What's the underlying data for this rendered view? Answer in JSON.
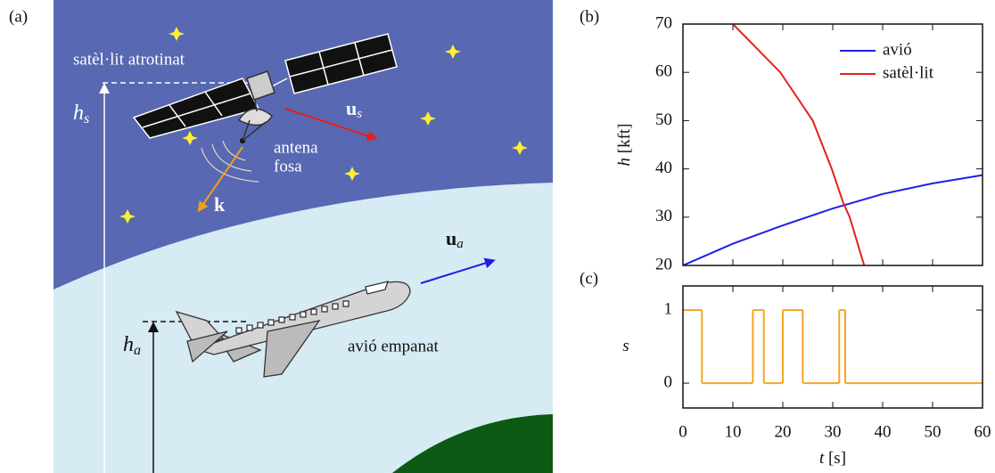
{
  "illustration": {
    "panel_label": "(a)",
    "satellite_label": "satèl·lit atrotinat",
    "satellite_height": {
      "symbol": "h",
      "subscript": "s"
    },
    "satellite_velocity": {
      "symbol": "u",
      "subscript": "s"
    },
    "antenna_label": [
      "antena",
      "fosa"
    ],
    "wave_vector": "k",
    "plane_velocity": {
      "symbol": "u",
      "subscript": "a"
    },
    "plane_height": {
      "symbol": "h",
      "subscript": "a"
    },
    "plane_label": "avió empanat"
  },
  "chart_data": [
    {
      "type": "line",
      "panel_label": "(b)",
      "ylabel": {
        "symbol": "h",
        "unit": "[kft]"
      },
      "xlim": [
        0,
        60
      ],
      "xticks": [
        0,
        10,
        20,
        30,
        40,
        50,
        60
      ],
      "show_xtick_labels": false,
      "ylim": [
        20,
        70
      ],
      "yticks": [
        20,
        30,
        40,
        50,
        60,
        70
      ],
      "legend": "upper right",
      "series": [
        {
          "name": "avió",
          "color": "#1f1fe6",
          "x": [
            0,
            10,
            20,
            30,
            40,
            50,
            60
          ],
          "values": [
            20,
            24.5,
            28.3,
            31.8,
            34.8,
            37,
            38.7
          ]
        },
        {
          "name": "satèl·lit",
          "color": "#e61f1f",
          "x": [
            10,
            19.5,
            26,
            29.8,
            32.1,
            33.4,
            36.3
          ],
          "values": [
            70,
            60,
            50,
            40,
            33,
            30,
            20
          ]
        }
      ]
    },
    {
      "type": "step",
      "panel_label": "(c)",
      "ylabel": "s",
      "xlabel": {
        "symbol": "t",
        "unit": "[s]"
      },
      "xlim": [
        0,
        60
      ],
      "xticks": [
        0,
        10,
        20,
        30,
        40,
        50,
        60
      ],
      "show_xtick_labels": true,
      "ylim": [
        -0.34,
        1.33
      ],
      "yticks": [
        0,
        1
      ],
      "series": [
        {
          "color": "#f5a623",
          "x": [
            0,
            3.8,
            14,
            16.2,
            20,
            24,
            31.3,
            32.5,
            60
          ],
          "values": [
            1,
            0,
            1,
            0,
            1,
            0,
            1,
            0,
            0
          ]
        }
      ]
    }
  ]
}
